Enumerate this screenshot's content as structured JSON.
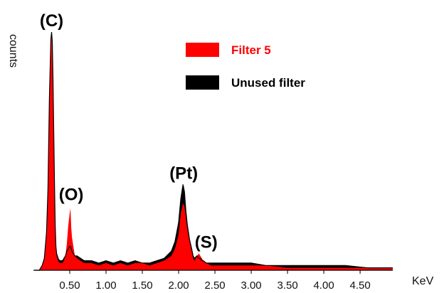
{
  "chart_data": {
    "type": "area",
    "title": "",
    "xlabel": "KeV",
    "ylabel": "counts",
    "xlim": [
      0.0,
      4.95
    ],
    "ylim": [
      0,
      100
    ],
    "grid": false,
    "x_ticks": [
      {
        "value": 0.5,
        "label": "0.50"
      },
      {
        "value": 1.0,
        "label": "1.00"
      },
      {
        "value": 1.5,
        "label": "1.50"
      },
      {
        "value": 2.0,
        "label": "2.00"
      },
      {
        "value": 2.5,
        "label": "2.50"
      },
      {
        "value": 3.0,
        "label": "3.00"
      },
      {
        "value": 3.5,
        "label": "3.50"
      },
      {
        "value": 4.0,
        "label": "4.00"
      },
      {
        "value": 4.5,
        "label": "4.50"
      }
    ],
    "legend": {
      "position": "top-right",
      "entries": [
        {
          "label": "Filter 5",
          "color": "#ff0000",
          "text_color": "#ff0000"
        },
        {
          "label": "Unused filter",
          "color": "#000000",
          "text_color": "#000000"
        }
      ]
    },
    "series": [
      {
        "name": "Filter 5",
        "color": "#ff0000",
        "x": [
          0.02,
          0.05,
          0.08,
          0.12,
          0.15,
          0.18,
          0.2,
          0.22,
          0.24,
          0.25,
          0.26,
          0.27,
          0.28,
          0.29,
          0.3,
          0.31,
          0.32,
          0.34,
          0.36,
          0.38,
          0.4,
          0.42,
          0.44,
          0.46,
          0.48,
          0.5,
          0.51,
          0.52,
          0.53,
          0.55,
          0.57,
          0.6,
          0.65,
          0.7,
          0.8,
          0.9,
          1.0,
          1.1,
          1.2,
          1.3,
          1.4,
          1.5,
          1.6,
          1.7,
          1.8,
          1.9,
          1.95,
          2.0,
          2.03,
          2.06,
          2.08,
          2.1,
          2.12,
          2.15,
          2.18,
          2.2,
          2.22,
          2.25,
          2.28,
          2.3,
          2.32,
          2.34,
          2.38,
          2.45,
          2.6,
          2.8,
          3.0,
          3.2,
          3.5,
          3.8,
          4.0,
          4.3,
          4.6,
          4.95
        ],
        "values": [
          0,
          0,
          0,
          2,
          5,
          15,
          32,
          70,
          96,
          99,
          95,
          78,
          55,
          35,
          18,
          9,
          6,
          4,
          3,
          3,
          3,
          4,
          6,
          11,
          19,
          24,
          26,
          18,
          14,
          10,
          6,
          5,
          4,
          3,
          3,
          2,
          3,
          2,
          3,
          2,
          3,
          3,
          2,
          3,
          4,
          6,
          9,
          15,
          24,
          28,
          27,
          22,
          17,
          12,
          8,
          5,
          4,
          6,
          7,
          6,
          5,
          4,
          3,
          2,
          2,
          2,
          2,
          2,
          1,
          1,
          1,
          1,
          1,
          1
        ]
      },
      {
        "name": "Unused filter",
        "color": "#000000",
        "x": [
          0.02,
          0.05,
          0.08,
          0.12,
          0.15,
          0.18,
          0.2,
          0.22,
          0.24,
          0.25,
          0.26,
          0.27,
          0.28,
          0.29,
          0.3,
          0.31,
          0.32,
          0.34,
          0.36,
          0.38,
          0.4,
          0.42,
          0.44,
          0.46,
          0.48,
          0.5,
          0.51,
          0.52,
          0.53,
          0.55,
          0.57,
          0.6,
          0.65,
          0.7,
          0.8,
          0.9,
          1.0,
          1.1,
          1.2,
          1.3,
          1.4,
          1.5,
          1.6,
          1.7,
          1.8,
          1.9,
          1.95,
          2.0,
          2.03,
          2.06,
          2.08,
          2.1,
          2.12,
          2.15,
          2.18,
          2.2,
          2.22,
          2.25,
          2.28,
          2.3,
          2.32,
          2.34,
          2.38,
          2.45,
          2.6,
          2.8,
          3.0,
          3.2,
          3.5,
          3.8,
          4.0,
          4.3,
          4.6,
          4.95
        ],
        "values": [
          0,
          0,
          0,
          2,
          5,
          16,
          34,
          72,
          97,
          100,
          96,
          80,
          57,
          36,
          19,
          10,
          7,
          5,
          4,
          4,
          4,
          5,
          6,
          8,
          9,
          10,
          10,
          9,
          8,
          7,
          6,
          6,
          5,
          4,
          4,
          3,
          4,
          3,
          4,
          3,
          4,
          3,
          3,
          4,
          5,
          8,
          12,
          20,
          30,
          36,
          33,
          25,
          19,
          13,
          9,
          6,
          5,
          6,
          5,
          5,
          4,
          4,
          3,
          3,
          3,
          3,
          3,
          2,
          2,
          2,
          2,
          2,
          1,
          1
        ]
      }
    ],
    "annotations": [
      {
        "text": "(C)",
        "x": 0.25,
        "y": 100
      },
      {
        "text": "(O)",
        "x": 0.52,
        "y": 27
      },
      {
        "text": "(Pt)",
        "x": 2.07,
        "y": 36
      },
      {
        "text": "(S)",
        "x": 2.38,
        "y": 7
      }
    ]
  }
}
